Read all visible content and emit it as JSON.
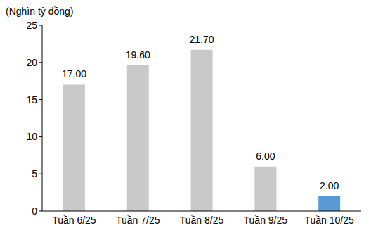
{
  "chart_data": {
    "type": "bar",
    "y_label": "(Nghìn tỷ đồng)",
    "categories": [
      "Tuần 6/25",
      "Tuần 7/25",
      "Tuần 8/25",
      "Tuần 9/25",
      "Tuần 10/25"
    ],
    "values": [
      17,
      19.6,
      21.7,
      6,
      2
    ],
    "value_labels": [
      "17.00",
      "19.60",
      "21.70",
      "6.00",
      "2.00"
    ],
    "colors": [
      "#c9c9c9",
      "#c9c9c9",
      "#c9c9c9",
      "#c9c9c9",
      "#5b9bd5"
    ],
    "ylim": [
      0,
      25
    ],
    "yticks": [
      0,
      5,
      10,
      15,
      20,
      25
    ],
    "grid": false,
    "data_labels": true
  }
}
